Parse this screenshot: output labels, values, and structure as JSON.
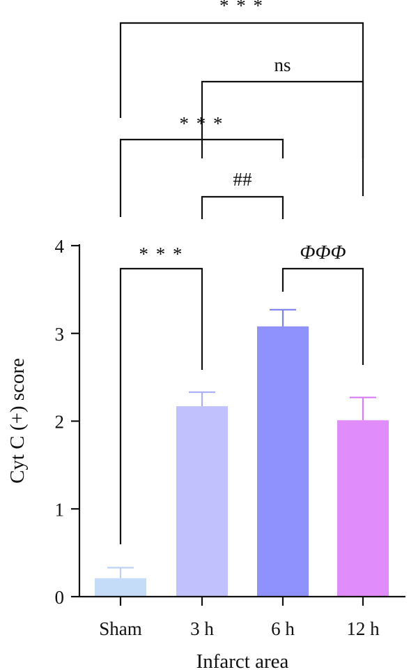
{
  "chart_data": {
    "type": "bar",
    "categories": [
      "Sham",
      "3 h",
      "6 h",
      "12 h"
    ],
    "values": [
      0.21,
      2.17,
      3.08,
      2.01
    ],
    "errors": [
      0.12,
      0.16,
      0.19,
      0.26
    ],
    "colors": [
      "#c5dcf9",
      "#c0c1fd",
      "#8f92fd",
      "#e08cfa"
    ],
    "error_colors": [
      "#bcd2f0",
      "#aeb0f6",
      "#7c80f2",
      "#d57cf0"
    ],
    "xlabel": "Infarct area",
    "ylabel": "Cyt C (+) score",
    "ylim": [
      0,
      4
    ],
    "yticks": [
      "0",
      "1",
      "2",
      "3",
      "4"
    ],
    "grid": false,
    "significance": [
      {
        "from": "Sham",
        "to": "3 h",
        "label": "* * *",
        "style": "stars"
      },
      {
        "from": "6 h",
        "to": "12 h",
        "label": "ΦΦΦ",
        "style": "italic"
      },
      {
        "from": "3 h",
        "to": "6 h",
        "label": "##",
        "style": "normal"
      },
      {
        "from": "Sham",
        "to": "6 h",
        "label": "* * *",
        "style": "stars"
      },
      {
        "from": "3 h",
        "to": "12 h",
        "label": "ns",
        "style": "normal"
      },
      {
        "from": "Sham",
        "to": "12 h",
        "label": "* * *",
        "style": "stars"
      }
    ]
  }
}
